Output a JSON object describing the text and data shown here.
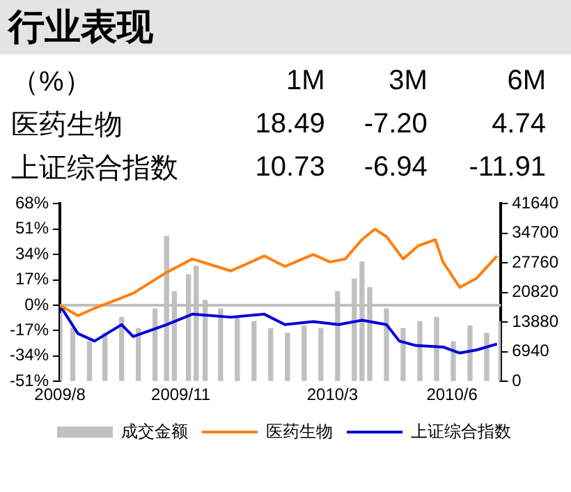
{
  "chart_data": [
    {
      "type": "other",
      "title": "行业表现",
      "annotations": [
        "（%）"
      ],
      "categories": [
        "1M",
        "3M",
        "6M"
      ],
      "series": [
        {
          "name": "医药生物",
          "values": [
            18.49,
            -7.2,
            4.74
          ],
          "value_labels": [
            "18.49",
            "-7.20",
            "4.74"
          ]
        },
        {
          "name": "上证综合指数",
          "values": [
            10.73,
            -6.94,
            -11.91
          ],
          "value_labels": [
            "10.73",
            "-6.94",
            "-11.91"
          ]
        }
      ]
    },
    {
      "type": "line",
      "xlim": [
        "2009-08-03",
        "2010-07-12"
      ],
      "xticks": [
        {
          "value": "2009-08-03",
          "label": "2009/8"
        },
        {
          "value": "2009-11-05",
          "label": "2009/11"
        },
        {
          "value": "2010-03-03",
          "label": "2010/3"
        },
        {
          "value": "2010-06-04",
          "label": "2010/6"
        }
      ],
      "ylim": [
        -51,
        68
      ],
      "yticks": [
        {
          "value": -51,
          "label": "-51%"
        },
        {
          "value": -34,
          "label": "-34%"
        },
        {
          "value": -17,
          "label": "-17%"
        },
        {
          "value": 0,
          "label": "0%"
        },
        {
          "value": 17,
          "label": "17%"
        },
        {
          "value": 34,
          "label": "34%"
        },
        {
          "value": 51,
          "label": "51%"
        },
        {
          "value": 68,
          "label": "68%"
        }
      ],
      "y2lim": [
        0,
        41640
      ],
      "y2ticks": [
        0,
        6940,
        13880,
        20820,
        27760,
        34700,
        41640
      ],
      "grid": false,
      "legend": "bottom",
      "ref_lines": [
        {
          "axis": "y",
          "value": 0,
          "color": "#c0c0c0"
        }
      ],
      "series": [
        {
          "name": "成交金额",
          "type": "bar",
          "axis": "y2",
          "color": "#c0c0c0",
          "x": [
            "2009-08-03",
            "2009-08-13",
            "2009-08-26",
            "2009-09-07",
            "2009-09-20",
            "2009-10-03",
            "2009-10-16",
            "2009-10-25",
            "2009-10-31",
            "2009-11-11",
            "2009-11-17",
            "2009-11-24",
            "2009-12-06",
            "2009-12-19",
            "2010-01-01",
            "2010-01-14",
            "2010-01-27",
            "2010-02-09",
            "2010-02-22",
            "2010-03-07",
            "2010-03-20",
            "2010-03-26",
            "2010-04-01",
            "2010-04-14",
            "2010-04-27",
            "2010-05-10",
            "2010-05-23",
            "2010-06-05",
            "2010-06-18",
            "2010-07-01",
            "2010-07-12"
          ],
          "values": [
            16000,
            12400,
            9300,
            11300,
            15000,
            12400,
            17000,
            34000,
            21000,
            25000,
            27000,
            19000,
            17000,
            15000,
            14000,
            12400,
            11300,
            13000,
            12400,
            21000,
            24000,
            28000,
            22000,
            17000,
            12400,
            14000,
            15000,
            9300,
            13000,
            11300,
            14000
          ]
        },
        {
          "name": "医药生物",
          "type": "line",
          "color": "#ff7f0e",
          "x": [
            "2009-08-03",
            "2009-08-17",
            "2009-08-30",
            "2009-09-20",
            "2009-09-29",
            "2009-10-25",
            "2009-11-14",
            "2009-12-14",
            "2010-01-09",
            "2010-01-25",
            "2010-02-16",
            "2010-03-01",
            "2010-03-13",
            "2010-03-26",
            "2010-04-05",
            "2010-04-14",
            "2010-04-27",
            "2010-05-09",
            "2010-05-22",
            "2010-05-28",
            "2010-06-10",
            "2010-06-23",
            "2010-07-09"
          ],
          "values": [
            0,
            -7,
            -2,
            5,
            8,
            22,
            31,
            23,
            33,
            26,
            34,
            29,
            31,
            44,
            51,
            46,
            31,
            40,
            44,
            29,
            12,
            18,
            33
          ]
        },
        {
          "name": "上证综合指数",
          "type": "line",
          "color": "#0000dd",
          "x": [
            "2009-08-03",
            "2009-08-17",
            "2009-08-30",
            "2009-09-20",
            "2009-09-29",
            "2009-10-25",
            "2009-11-14",
            "2009-12-14",
            "2010-01-09",
            "2010-01-25",
            "2010-02-16",
            "2010-03-08",
            "2010-03-26",
            "2010-04-14",
            "2010-04-24",
            "2010-05-07",
            "2010-05-28",
            "2010-06-10",
            "2010-06-23",
            "2010-07-09"
          ],
          "values": [
            0,
            -19,
            -24,
            -13,
            -21,
            -13,
            -6,
            -8,
            -6,
            -13,
            -11,
            -13,
            -10,
            -13,
            -24,
            -27,
            -28,
            -32,
            -30,
            -26
          ]
        }
      ]
    }
  ]
}
